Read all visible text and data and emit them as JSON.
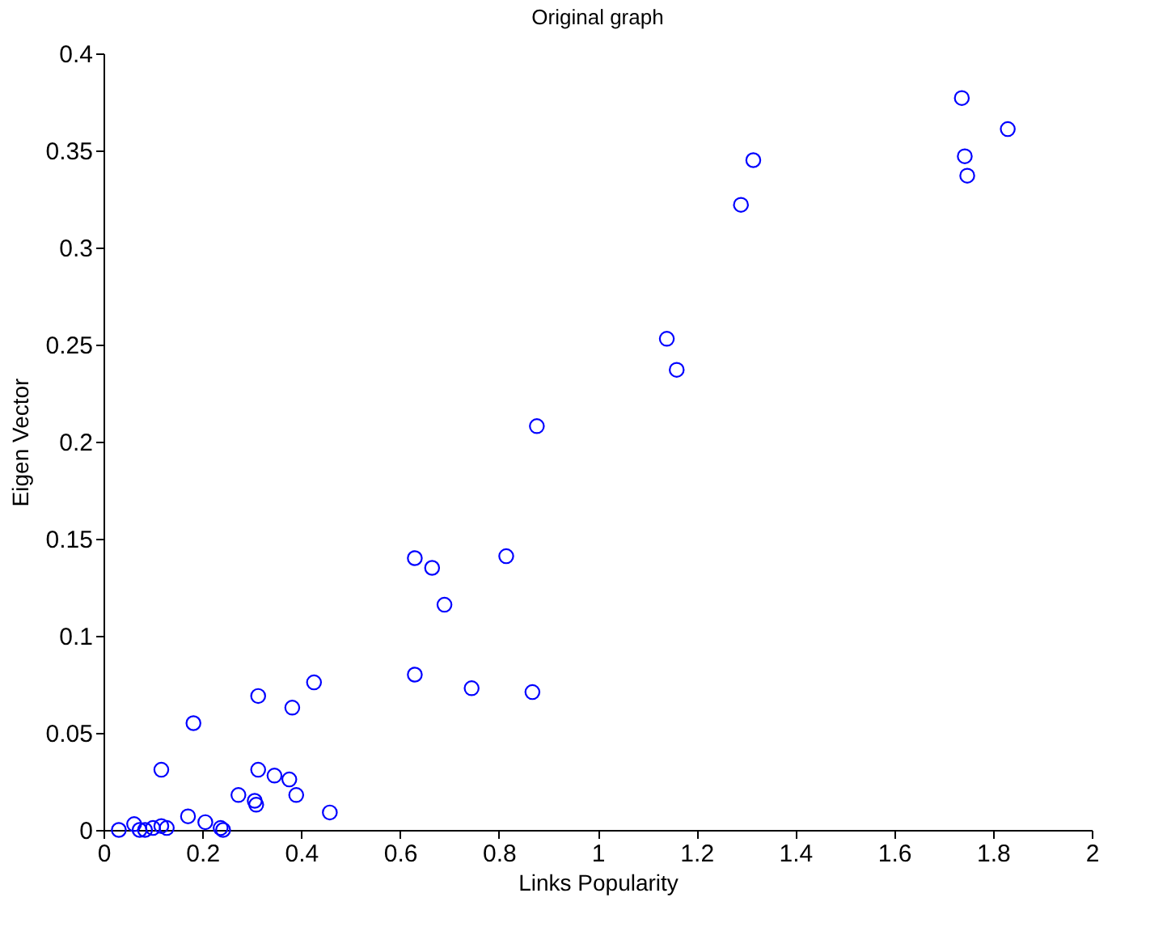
{
  "chart_data": {
    "type": "scatter",
    "title": "Original graph",
    "xlabel": "Links Popularity",
    "ylabel": "Eigen Vector",
    "x": [
      0.031,
      0.062,
      0.073,
      0.084,
      0.1,
      0.117,
      0.128,
      0.117,
      0.182,
      0.171,
      0.206,
      0.237,
      0.242,
      0.273,
      0.306,
      0.309,
      0.313,
      0.346,
      0.376,
      0.39,
      0.313,
      0.382,
      0.426,
      0.458,
      0.63,
      0.665,
      0.69,
      0.815,
      0.63,
      0.745,
      0.868,
      0.877,
      1.14,
      1.16,
      1.29,
      1.315,
      1.737,
      1.743,
      1.748,
      1.83
    ],
    "series": [
      {
        "color": "#0000ff",
        "values": [
          0,
          0.003,
          0,
          0,
          0.001,
          0.002,
          0.001,
          0.031,
          0.055,
          0.007,
          0.004,
          0.001,
          0,
          0.018,
          0.015,
          0.013,
          0.031,
          0.028,
          0.026,
          0.018,
          0.069,
          0.063,
          0.076,
          0.009,
          0.14,
          0.135,
          0.116,
          0.141,
          0.08,
          0.073,
          0.071,
          0.208,
          0.253,
          0.237,
          0.322,
          0.345,
          0.377,
          0.347,
          0.337,
          0.361
        ]
      }
    ],
    "xlim": [
      0,
      2
    ],
    "xticks": [
      0,
      0.2,
      0.4,
      0.6,
      0.8,
      1,
      1.2,
      1.4,
      1.6,
      1.8,
      2
    ],
    "ylim": [
      0,
      0.4
    ],
    "yticks": [
      0,
      0.05,
      0.1,
      0.15,
      0.2,
      0.25,
      0.3,
      0.35,
      0.4
    ],
    "grid": false,
    "marker": "circle"
  }
}
